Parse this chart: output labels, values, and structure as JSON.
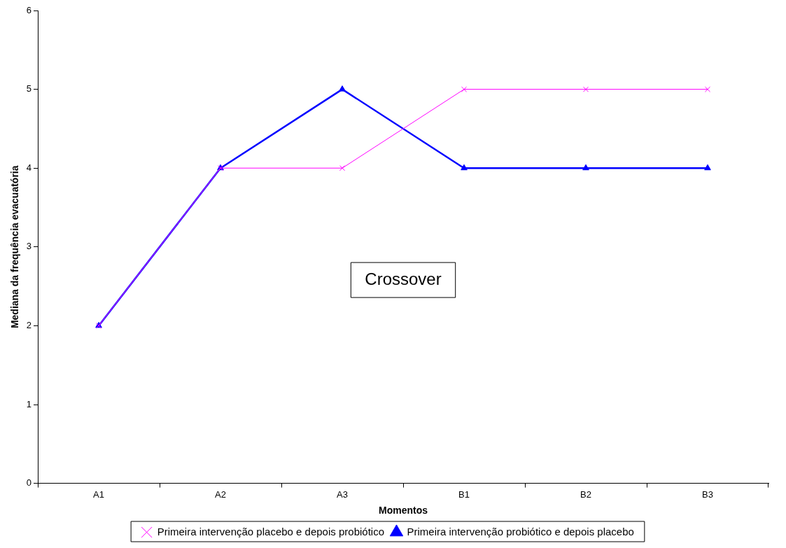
{
  "chart_data": {
    "type": "line",
    "xlabel": "Momentos",
    "ylabel": "Mediana da frequência evacuatória",
    "categories": [
      "A1",
      "A2",
      "A3",
      "B1",
      "B2",
      "B3"
    ],
    "series": [
      {
        "name": "Primeira intervenção probiótico e depois placebo",
        "color": "#0000ff",
        "marker": "triangle",
        "values": [
          2,
          4,
          5,
          4,
          4,
          4
        ]
      },
      {
        "name": "Primeira intervenção placebo e depois probiótico",
        "color": "#ff00ff",
        "marker": "cross",
        "values": [
          2,
          4,
          4,
          5,
          5,
          5
        ]
      }
    ],
    "ylim": [
      0,
      6
    ],
    "yticks": [
      0,
      1,
      2,
      3,
      4,
      5,
      6
    ],
    "grid": false,
    "legend": "bottom",
    "line_style": "solid",
    "annotations": [
      "Crossover"
    ]
  }
}
